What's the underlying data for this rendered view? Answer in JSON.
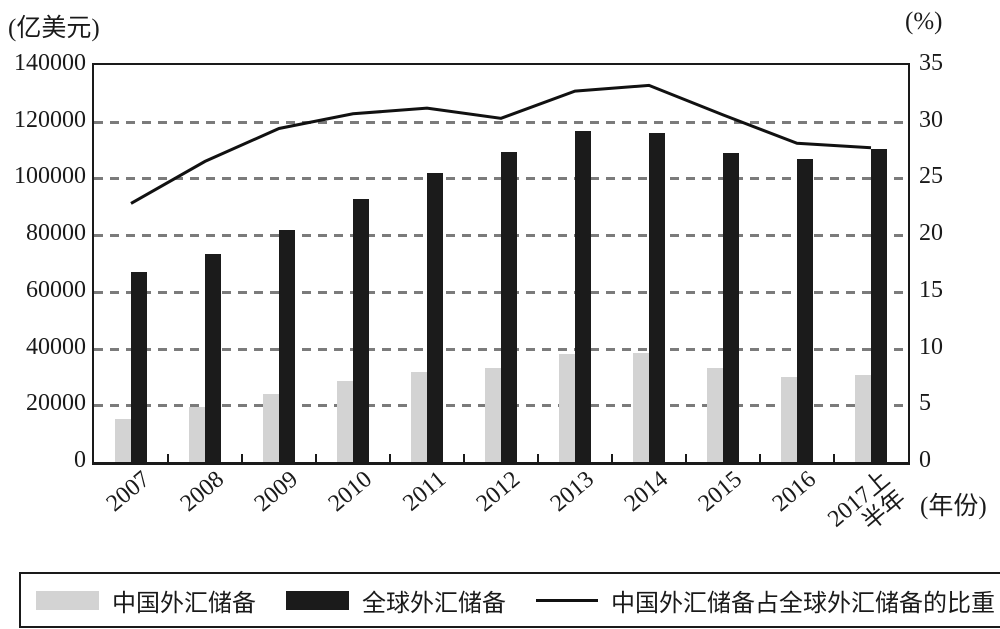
{
  "chart_data": {
    "type": "bar+line",
    "title": "",
    "categories": [
      "2007",
      "2008",
      "2009",
      "2010",
      "2011",
      "2012",
      "2013",
      "2014",
      "2015",
      "2016",
      "2017上\n半年"
    ],
    "series": [
      {
        "key": "china-fx-reserves",
        "name": "中国外汇储备",
        "type": "bar",
        "axis": "left",
        "color": "#d3d3d3",
        "values": [
          15282,
          19460,
          23992,
          28473,
          31811,
          33116,
          38213,
          38430,
          33304,
          30105,
          30568
        ]
      },
      {
        "key": "global-fx-reserves",
        "name": "全球外汇储备",
        "type": "bar",
        "axis": "left",
        "color": "#1b1b1b",
        "values": [
          67000,
          73400,
          81700,
          92600,
          102000,
          109300,
          116700,
          115900,
          109000,
          107000,
          110400
        ]
      },
      {
        "key": "china-share-of-global",
        "name": "中国外汇储备占全球外汇储备的比重",
        "type": "line",
        "axis": "right",
        "color": "#111111",
        "values": [
          22.8,
          26.5,
          29.4,
          30.7,
          31.2,
          30.3,
          32.7,
          33.2,
          30.6,
          28.1,
          27.7
        ]
      }
    ],
    "left_axis": {
      "unit": "(亿美元)",
      "min": 0,
      "max": 140000,
      "step": 20000,
      "tick_labels": [
        "0",
        "20000",
        "40000",
        "60000",
        "80000",
        "100000",
        "120000",
        "140000"
      ]
    },
    "right_axis": {
      "unit": "(%)",
      "min": 0,
      "max": 35,
      "step": 5,
      "tick_labels": [
        "0",
        "5",
        "10",
        "15",
        "20",
        "25",
        "30",
        "35"
      ]
    },
    "x_axis": {
      "unit": "(年份)"
    },
    "grid": "horizontal dashed",
    "legend_position": "bottom"
  }
}
